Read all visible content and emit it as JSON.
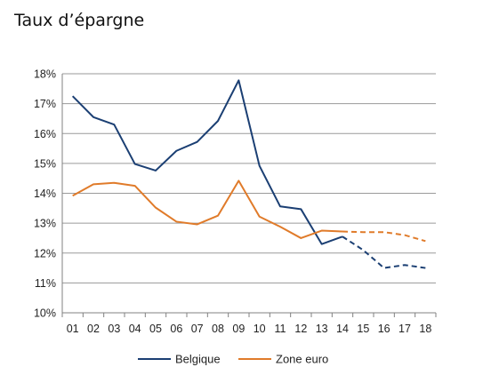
{
  "chart_data": {
    "type": "line",
    "title": "Taux d’épargne",
    "xlabel": "",
    "ylabel": "",
    "categories": [
      "01",
      "02",
      "03",
      "04",
      "05",
      "06",
      "07",
      "08",
      "09",
      "10",
      "11",
      "12",
      "13",
      "14",
      "15",
      "16",
      "17",
      "18"
    ],
    "ylim": [
      10,
      18
    ],
    "yticks": [
      "10%",
      "11%",
      "12%",
      "13%",
      "14%",
      "15%",
      "16%",
      "17%",
      "18%"
    ],
    "grid": true,
    "legend_position": "bottom",
    "forecast_from_index": 13,
    "series": [
      {
        "name": "Belgique",
        "color": "#1b3f73",
        "values": [
          17.25,
          16.55,
          16.3,
          14.98,
          14.76,
          15.42,
          15.72,
          16.42,
          17.78,
          14.92,
          13.56,
          13.47,
          12.3,
          12.55,
          12.1,
          11.5,
          11.6,
          11.5
        ]
      },
      {
        "name": "Zone euro",
        "color": "#e07b2a",
        "values": [
          13.92,
          14.3,
          14.35,
          14.25,
          13.52,
          13.05,
          12.96,
          13.25,
          14.42,
          13.22,
          12.88,
          12.5,
          12.75,
          12.72,
          12.7,
          12.7,
          12.6,
          12.4
        ]
      }
    ]
  }
}
